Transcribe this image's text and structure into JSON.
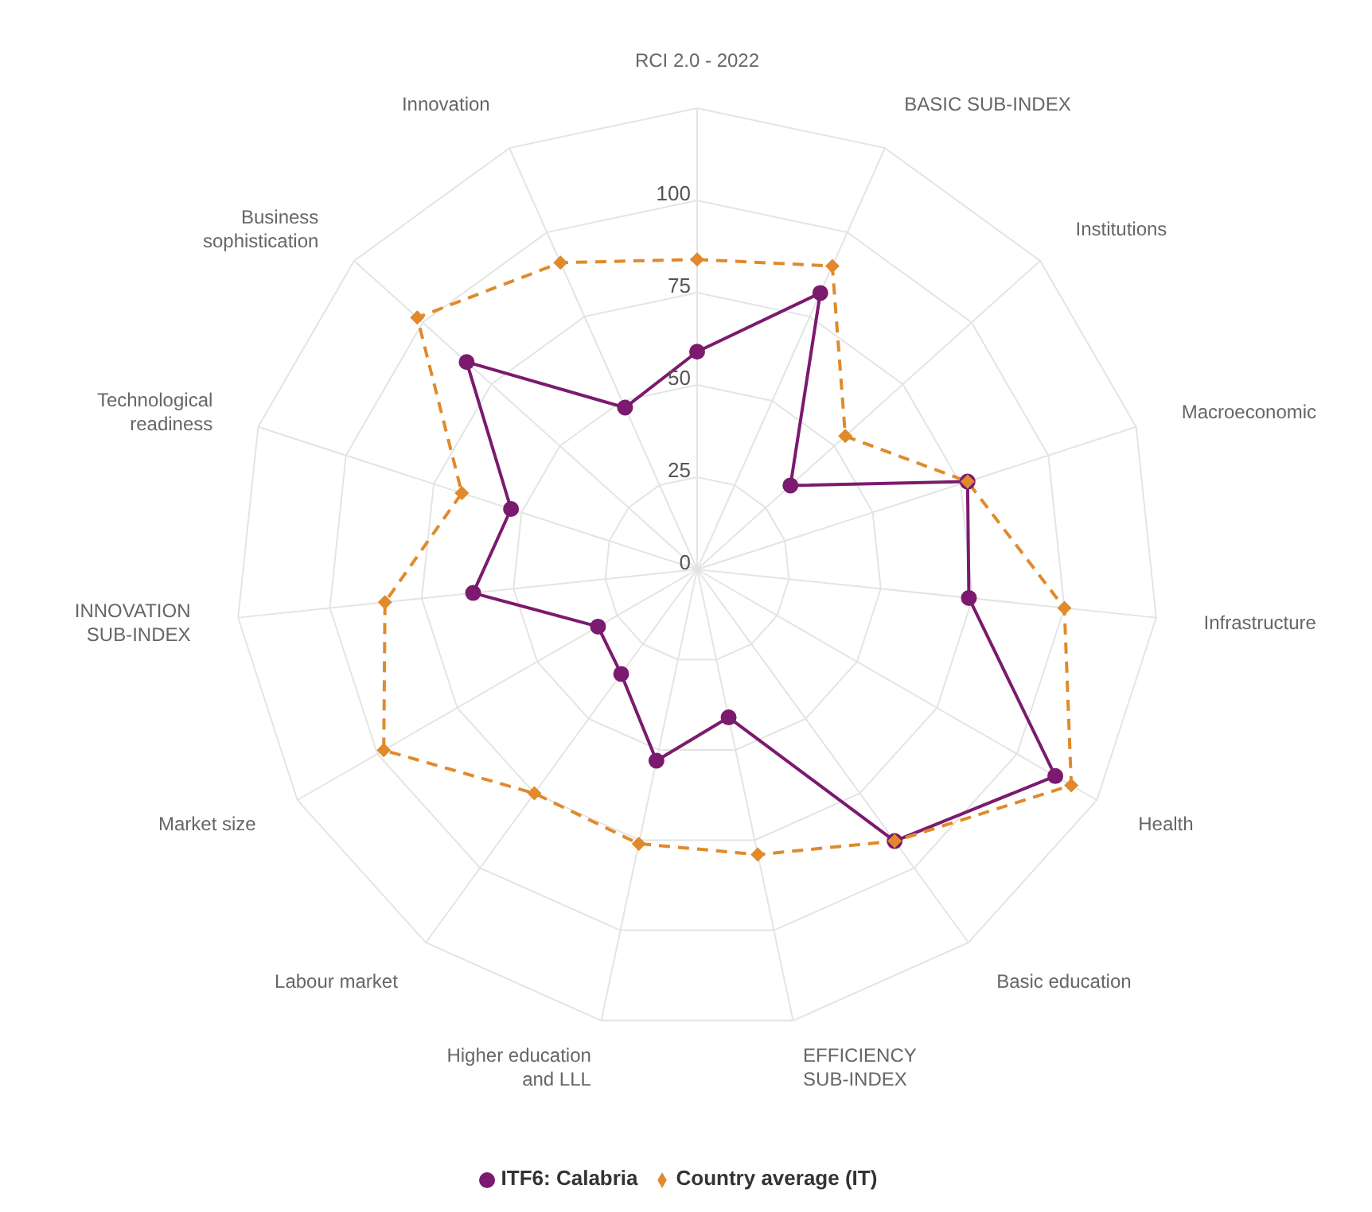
{
  "chart_data": {
    "type": "radar",
    "categories": [
      "RCI 2.0 - 2022",
      "BASIC SUB-INDEX",
      "Institutions",
      "Macroeconomic",
      "Infrastructure",
      "Health",
      "Basic education",
      "EFFICIENCY SUB-INDEX",
      "Higher education and LLL",
      "Labour market",
      "Market size",
      "INNOVATION SUB-INDEX",
      "Technological readiness",
      "Business sophistication",
      "Innovation"
    ],
    "series": [
      {
        "name": "ITF6: Calabria",
        "color": "#7b1a6e",
        "marker": "circle",
        "line_style": "solid",
        "values": [
          59,
          82,
          34,
          77,
          74,
          112,
          91,
          41,
          53,
          35,
          31,
          61,
          53,
          84,
          48
        ]
      },
      {
        "name": "Country average (IT)",
        "color": "#e08a2c",
        "marker": "diamond",
        "line_style": "dashed",
        "values": [
          84,
          90,
          54,
          77,
          100,
          117,
          91,
          79,
          76,
          75,
          98,
          85,
          67,
          102,
          91
        ]
      }
    ],
    "ylim": [
      0,
      125
    ],
    "yticks": [
      0,
      25,
      50,
      75,
      100
    ],
    "grid": true,
    "legend": "bottom"
  }
}
